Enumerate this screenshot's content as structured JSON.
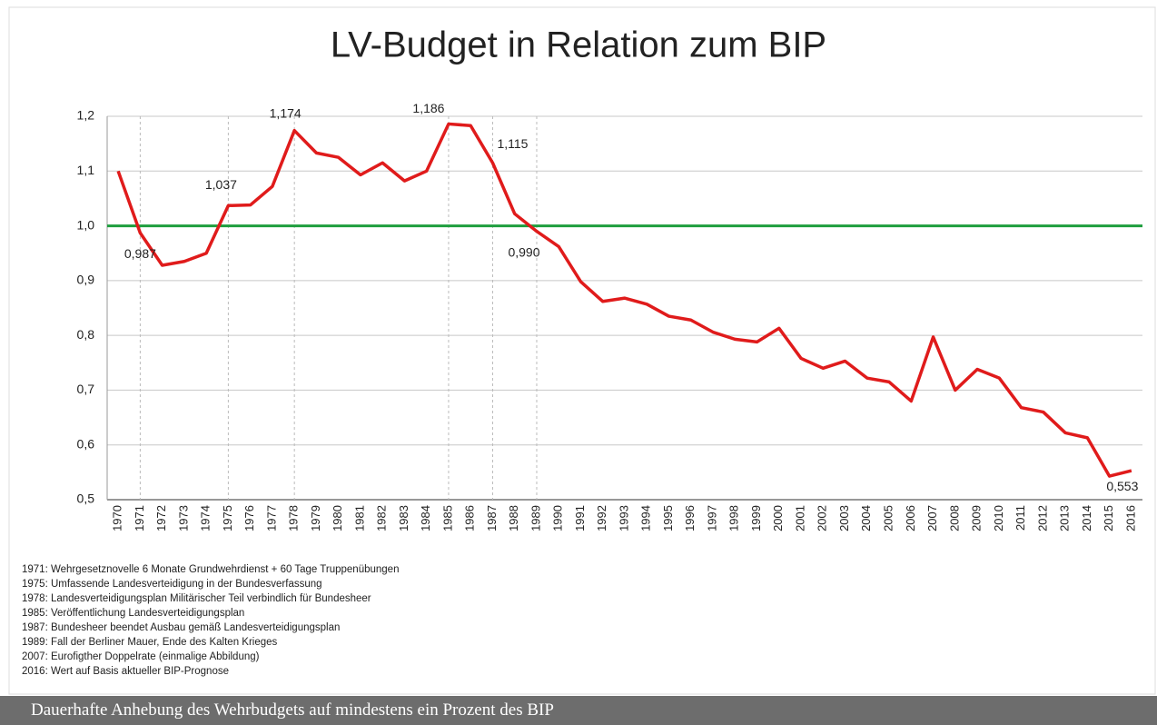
{
  "chart_data": {
    "type": "line",
    "title": "LV-Budget in Relation zum BIP",
    "categories": [
      "1970",
      "1971",
      "1972",
      "1973",
      "1974",
      "1975",
      "1976",
      "1977",
      "1978",
      "1979",
      "1980",
      "1981",
      "1982",
      "1983",
      "1984",
      "1985",
      "1986",
      "1987",
      "1988",
      "1989",
      "1990",
      "1991",
      "1992",
      "1993",
      "1994",
      "1995",
      "1996",
      "1997",
      "1998",
      "1999",
      "2000",
      "2001",
      "2002",
      "2003",
      "2004",
      "2005",
      "2006",
      "2007",
      "2008",
      "2009",
      "2010",
      "2011",
      "2012",
      "2013",
      "2014",
      "2015",
      "2016"
    ],
    "values": [
      1.1,
      0.987,
      0.928,
      0.935,
      0.95,
      1.037,
      1.038,
      1.072,
      1.174,
      1.133,
      1.125,
      1.093,
      1.115,
      1.082,
      1.1,
      1.186,
      1.183,
      1.115,
      1.022,
      0.99,
      0.962,
      0.898,
      0.862,
      0.868,
      0.857,
      0.835,
      0.828,
      0.806,
      0.793,
      0.788,
      0.813,
      0.758,
      0.74,
      0.753,
      0.722,
      0.715,
      0.68,
      0.797,
      0.7,
      0.738,
      0.722,
      0.668,
      0.66,
      0.622,
      0.613,
      0.543,
      0.553
    ],
    "value_labels": [
      null,
      "0,987",
      null,
      null,
      null,
      "1,037",
      null,
      null,
      "1,174",
      null,
      null,
      null,
      null,
      null,
      null,
      "1,186",
      null,
      "1,115",
      null,
      "0,990",
      null,
      null,
      null,
      null,
      null,
      null,
      null,
      null,
      null,
      null,
      null,
      null,
      null,
      null,
      null,
      null,
      null,
      null,
      null,
      null,
      null,
      null,
      null,
      null,
      null,
      null,
      "0,553"
    ],
    "color": "#e01b1b",
    "reference_line": {
      "value": 1.0,
      "color": "#1e9e3e"
    },
    "event_lines": [
      "1971",
      "1975",
      "1978",
      "1985",
      "1987",
      "1989"
    ],
    "ylim": [
      0.5,
      1.2
    ],
    "yticks": [
      {
        "value": 0.5,
        "label": "0,5"
      },
      {
        "value": 0.6,
        "label": "0,6"
      },
      {
        "value": 0.7,
        "label": "0,7"
      },
      {
        "value": 0.8,
        "label": "0,8"
      },
      {
        "value": 0.9,
        "label": "0,9"
      },
      {
        "value": 1.0,
        "label": "1,0"
      },
      {
        "value": 1.1,
        "label": "1,1"
      },
      {
        "value": 1.2,
        "label": "1,2"
      }
    ],
    "grid": true
  },
  "notes": [
    "1971:  Wehrgesetznovelle 6 Monate Grundwehrdienst + 60 Tage Truppenübungen",
    "1975:  Umfassende Landesverteidigung in der Bundesverfassung",
    "1978:  Landesverteidigungsplan Militärischer Teil verbindlich für Bundesheer",
    "1985:  Veröffentlichung Landesverteidigungsplan",
    "1987:  Bundesheer beendet Ausbau gemäß Landesverteidigungsplan",
    "1989:  Fall der Berliner Mauer, Ende des Kalten Krieges",
    "2007:  Eurofigther Doppelrate (einmalige Abbildung)",
    "2016:  Wert auf Basis aktueller BIP-Prognose"
  ],
  "caption": "Dauerhafte Anhebung des Wehrbudgets auf mindestens ein Prozent des BIP"
}
